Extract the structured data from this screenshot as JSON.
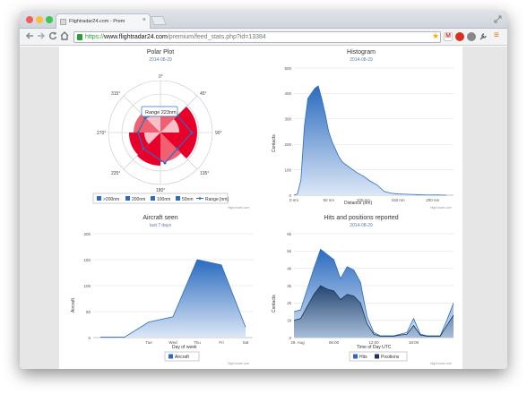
{
  "browser": {
    "tab_title": "Flightradar24.com - Prem",
    "tab_close": "×",
    "url_scheme": "https://",
    "url_host": "www.flightradar24.com",
    "url_path": "/premium/feed_stats.php?id=13384",
    "icons": [
      "back-icon",
      "forward-icon",
      "reload-icon",
      "home-icon",
      "star-icon",
      "gmail-icon",
      "adblock-icon",
      "extension-icon",
      "wrench-icon",
      "menu-icon"
    ],
    "star_glyph": "★",
    "menu_glyph": "≡"
  },
  "polar": {
    "title": "Polar Plot",
    "subtitle": "2014-08-29",
    "tooltip": "Range 223nm",
    "angle_labels": [
      "0°",
      "45°",
      "90°",
      "135°",
      "180°",
      "225°",
      "270°",
      "315°"
    ],
    "legend": [
      ">200nm",
      "200nm",
      "100nm",
      "50nm",
      "Range [nm]"
    ],
    "credit": "Highcharts.com",
    "colors": {
      "gt200": "#2b6bbf",
      "r200": "#e8002a",
      "r100": "#f06070",
      "r50": "#f8c0c8",
      "range": "#2b6bbf"
    }
  },
  "histogram": {
    "title": "Histogram",
    "subtitle": "2014-08-29",
    "ylabel": "Contacts",
    "xlabel": "Distance (nm)",
    "credit": "Highcharts.com"
  },
  "aircraft": {
    "title": "Aircraft seen",
    "subtitle": "last 7 days",
    "ylabel": "Aircraft",
    "xlabel": "Day of week",
    "legend": [
      "Aircraft"
    ],
    "credit": "Highcharts.com"
  },
  "hits": {
    "title": "Hits and positions reported",
    "subtitle": "2014-08-29",
    "ylabel": "Contacts",
    "xlabel": "Time of Day UTC",
    "legend": [
      "Hits",
      "Positions"
    ],
    "credit": "Highcharts.com"
  },
  "chart_data": [
    {
      "type": "area",
      "name": "Histogram",
      "xlabel": "Distance (nm)",
      "ylabel": "Contacts",
      "x_ticks": [
        "0 nm",
        "50 nm",
        "100 nm",
        "150 nm",
        "200 nm"
      ],
      "y_ticks": [
        "0",
        "100",
        "200",
        "300",
        "400",
        "500"
      ],
      "xlim": [
        0,
        230
      ],
      "ylim": [
        0,
        500
      ],
      "x": [
        0,
        5,
        10,
        15,
        20,
        25,
        30,
        35,
        40,
        45,
        50,
        55,
        60,
        65,
        70,
        80,
        90,
        100,
        110,
        120,
        130,
        140,
        150,
        160,
        170,
        180,
        190,
        200,
        210,
        220
      ],
      "values": [
        0,
        5,
        60,
        270,
        380,
        400,
        420,
        430,
        380,
        320,
        250,
        210,
        180,
        150,
        130,
        110,
        90,
        75,
        55,
        40,
        15,
        8,
        5,
        4,
        3,
        2,
        1,
        1,
        1,
        0
      ],
      "color": "#2b6bbf"
    },
    {
      "type": "area",
      "name": "Aircraft seen",
      "xlabel": "Day of week",
      "ylabel": "Aircraft",
      "categories": [
        "",
        "",
        "Tue",
        "Wed",
        "Thu",
        "Fri",
        "Sat"
      ],
      "y_ticks": [
        "0",
        "50",
        "100",
        "150",
        "200"
      ],
      "ylim": [
        0,
        200
      ],
      "values": [
        1,
        1,
        30,
        40,
        150,
        140,
        20
      ],
      "color": "#2b6bbf"
    },
    {
      "type": "area",
      "name": "Hits and positions reported",
      "xlabel": "Time of Day UTC",
      "ylabel": "Contacts",
      "x_ticks": [
        "29. Aug",
        "06:00",
        "12:00",
        "18:00"
      ],
      "y_ticks": [
        "0",
        "1k",
        "2k",
        "3k",
        "4k",
        "5k",
        "6k"
      ],
      "ylim": [
        0,
        6000
      ],
      "x": [
        0,
        1,
        2,
        3,
        4,
        5,
        6,
        7,
        8,
        9,
        10,
        11,
        12,
        13,
        14,
        15,
        16,
        17,
        18,
        19,
        20,
        21,
        22,
        23,
        24
      ],
      "series": [
        {
          "name": "Hits",
          "values": [
            1500,
            1600,
            2800,
            4000,
            5100,
            4800,
            4500,
            3400,
            4100,
            3900,
            3200,
            1200,
            300,
            100,
            100,
            100,
            200,
            300,
            1100,
            200,
            100,
            100,
            100,
            1000,
            2000
          ],
          "color": "#2b6bbf"
        },
        {
          "name": "Positions",
          "values": [
            1000,
            1100,
            1800,
            2500,
            3000,
            2800,
            2700,
            2200,
            2500,
            2400,
            2000,
            800,
            200,
            80,
            80,
            80,
            150,
            200,
            700,
            150,
            80,
            80,
            80,
            700,
            1300
          ],
          "color": "#17365e"
        }
      ]
    }
  ]
}
